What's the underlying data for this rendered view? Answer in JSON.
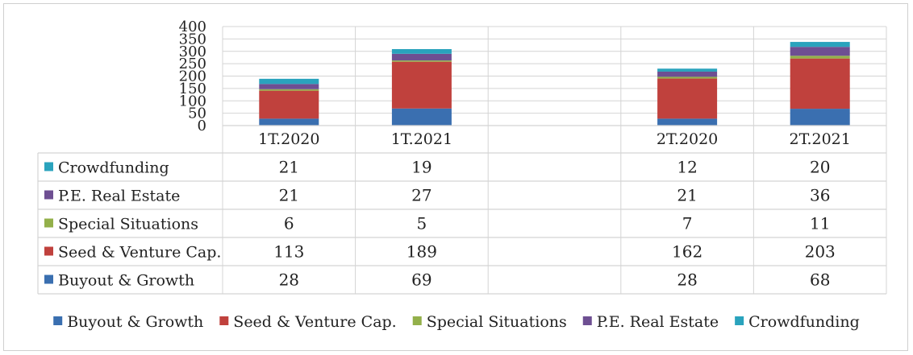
{
  "chart_data": {
    "type": "bar",
    "stacked": true,
    "categories": [
      "1T.2020",
      "1T.2021",
      "",
      "2T.2020",
      "2T.2021"
    ],
    "ylim": [
      0,
      400
    ],
    "yticks": [
      "0",
      "50",
      "100",
      "150",
      "200",
      "250",
      "300",
      "350",
      "400"
    ],
    "grid": true,
    "legend_position": "bottom",
    "series": [
      {
        "name": "Buyout & Growth",
        "color": "#3a6fb0",
        "values": [
          28,
          69,
          null,
          28,
          68
        ],
        "labels": [
          "28",
          "69",
          "",
          "28",
          "68"
        ]
      },
      {
        "name": "Seed & Venture Cap.",
        "color": "#c0413d",
        "values": [
          113,
          189,
          null,
          162,
          203
        ],
        "labels": [
          "113",
          "189",
          "",
          "162",
          "203"
        ]
      },
      {
        "name": "Special Situations",
        "color": "#93b04a",
        "values": [
          6,
          5,
          null,
          7,
          11
        ],
        "labels": [
          "6",
          "5",
          "",
          "7",
          "11"
        ]
      },
      {
        "name": "P.E. Real Estate",
        "color": "#6e4f92",
        "values": [
          21,
          27,
          null,
          21,
          36
        ],
        "labels": [
          "21",
          "27",
          "",
          "21",
          "36"
        ]
      },
      {
        "name": "Crowdfunding",
        "color": "#2aa3bd",
        "values": [
          21,
          19,
          null,
          12,
          20
        ],
        "labels": [
          "21",
          "19",
          "",
          "12",
          "20"
        ]
      }
    ],
    "table_row_order": [
      "Crowdfunding",
      "P.E. Real Estate",
      "Special Situations",
      "Seed & Venture Cap.",
      "Buyout & Growth"
    ]
  }
}
